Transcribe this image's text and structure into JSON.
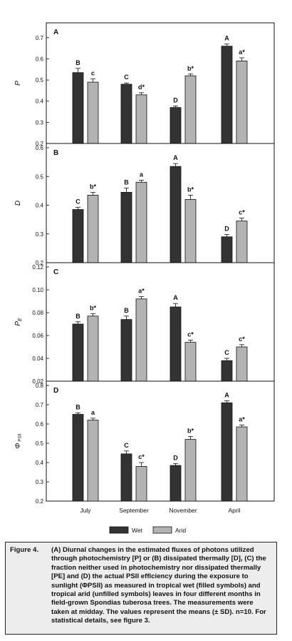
{
  "chart_data": [
    {
      "type": "bar",
      "panel_label": "A",
      "ylabel": "P",
      "ylim": [
        0.2,
        0.75
      ],
      "yticks": [
        "0.2",
        "0.3",
        "0.4",
        "0.5",
        "0.6",
        "0.7"
      ],
      "categories": [
        "July",
        "September",
        "November",
        "April"
      ],
      "series": [
        {
          "name": "Wet",
          "values": [
            0.535,
            0.48,
            0.37,
            0.66
          ],
          "errors": [
            0.02,
            0.006,
            0.007,
            0.01
          ],
          "labels": [
            "B",
            "C",
            "D",
            "A"
          ]
        },
        {
          "name": "Arid",
          "values": [
            0.49,
            0.43,
            0.52,
            0.59
          ],
          "errors": [
            0.015,
            0.01,
            0.008,
            0.015
          ],
          "labels": [
            "c",
            "d*",
            "b*",
            "a*"
          ]
        }
      ]
    },
    {
      "type": "bar",
      "panel_label": "B",
      "ylabel": "D",
      "ylim": [
        0.2,
        0.6
      ],
      "yticks": [
        "0.2",
        "0.3",
        "0.4",
        "0.5",
        "0.6"
      ],
      "categories": [
        "July",
        "September",
        "November",
        "April"
      ],
      "series": [
        {
          "name": "Wet",
          "values": [
            0.385,
            0.445,
            0.535,
            0.29
          ],
          "errors": [
            0.008,
            0.015,
            0.01,
            0.008
          ],
          "labels": [
            "C",
            "B",
            "A",
            "D"
          ]
        },
        {
          "name": "Arid",
          "values": [
            0.435,
            0.48,
            0.42,
            0.345
          ],
          "errors": [
            0.01,
            0.007,
            0.015,
            0.01
          ],
          "labels": [
            "b*",
            "a",
            "b*",
            "c*"
          ]
        }
      ]
    },
    {
      "type": "bar",
      "panel_label": "C",
      "ylabel": "PE",
      "ylim": [
        0.02,
        0.12
      ],
      "yticks": [
        "0.02",
        "0.04",
        "0.06",
        "0.08",
        "0.10",
        "0.12"
      ],
      "categories": [
        "July",
        "September",
        "November",
        "April"
      ],
      "series": [
        {
          "name": "Wet",
          "values": [
            0.07,
            0.074,
            0.085,
            0.038
          ],
          "errors": [
            0.002,
            0.003,
            0.003,
            0.002
          ],
          "labels": [
            "B",
            "B",
            "A",
            "C"
          ]
        },
        {
          "name": "Arid",
          "values": [
            0.077,
            0.092,
            0.054,
            0.05
          ],
          "errors": [
            0.002,
            0.002,
            0.002,
            0.002
          ],
          "labels": [
            "b*",
            "a*",
            "c*",
            "c*"
          ]
        }
      ]
    },
    {
      "type": "bar",
      "panel_label": "D",
      "ylabel": "ΦPSII",
      "ylim": [
        0.2,
        0.8
      ],
      "yticks": [
        "0.2",
        "0.3",
        "0.4",
        "0.5",
        "0.6",
        "0.7",
        "0.8"
      ],
      "categories": [
        "July",
        "September",
        "November",
        "April"
      ],
      "series": [
        {
          "name": "Wet",
          "values": [
            0.65,
            0.445,
            0.385,
            0.71
          ],
          "errors": [
            0.008,
            0.015,
            0.01,
            0.01
          ],
          "labels": [
            "B",
            "C",
            "D",
            "A"
          ]
        },
        {
          "name": "Arid",
          "values": [
            0.62,
            0.38,
            0.52,
            0.585
          ],
          "errors": [
            0.01,
            0.02,
            0.015,
            0.01
          ],
          "labels": [
            "a",
            "c*",
            "b*",
            "a*"
          ]
        }
      ]
    }
  ],
  "legend": {
    "wet": "Wet",
    "arid": "Arid",
    "wet_color": "#333333",
    "arid_color": "#b3b3b3"
  },
  "caption": {
    "label": "Figure 4.",
    "text": "(A) Diurnal changes in the estimated fluxes of photons utilized through photochemistry [P] or (B) dissipated thermally [D], (C) the fraction neither used in photochemistry nor dissipated thermally [PE] and (D) the actual PSII efficiency during the exposure to sunlight (ΦPSII) as measured in tropical wet (filled symbols) and tropical arid (unfilled symbols) leaves in four different months in field-grown Spondias tuberosa trees. The measurements were taken at midday. The values represent the means (± SD). n=10. For statistical details, see figure 3."
  }
}
